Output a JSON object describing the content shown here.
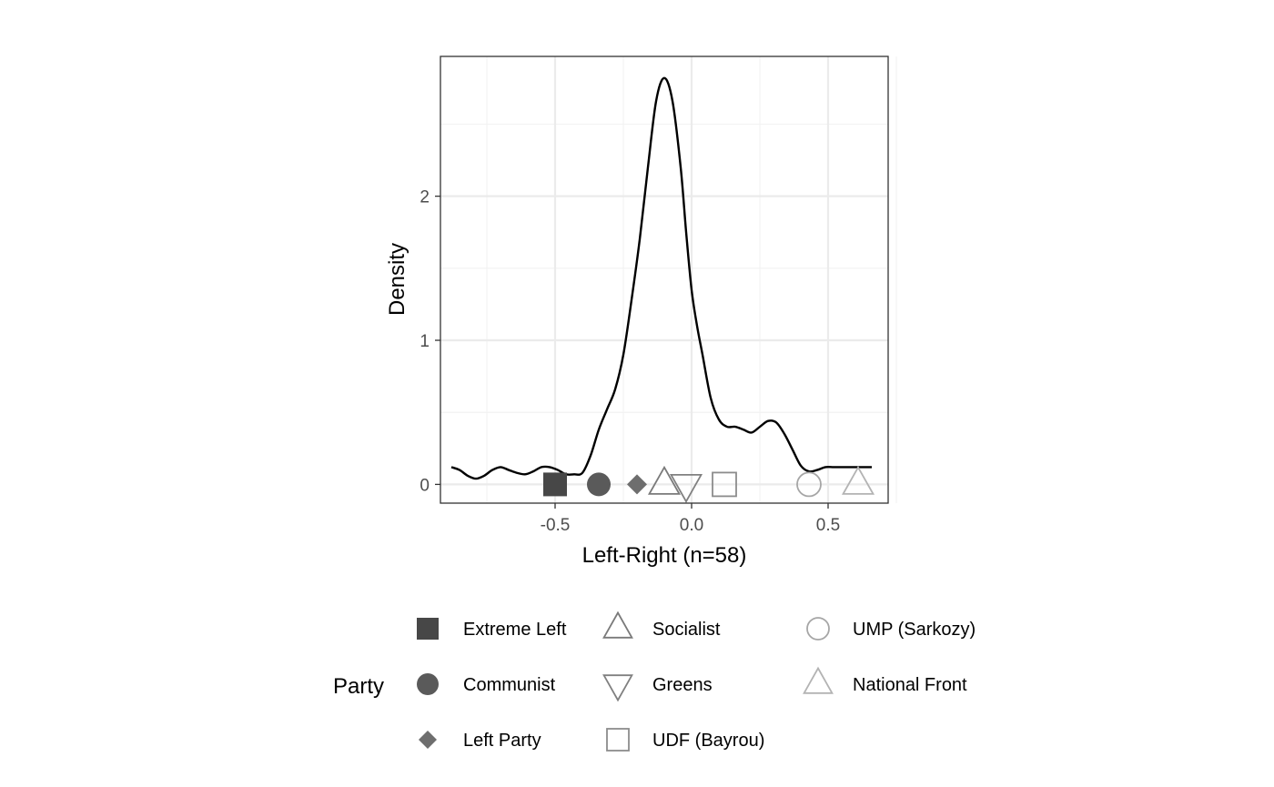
{
  "chart_data": {
    "type": "line",
    "xlabel": "Left-Right (n=58)",
    "ylabel": "Density",
    "xlim": [
      -0.92,
      0.72
    ],
    "ylim": [
      -0.13,
      2.97
    ],
    "x_ticks": [
      -0.5,
      0.0,
      0.5
    ],
    "x_tick_labels": [
      "-0.5",
      "0.0",
      "0.5"
    ],
    "y_ticks": [
      0,
      1,
      2
    ],
    "y_tick_labels": [
      "0",
      "1",
      "2"
    ],
    "grid": true,
    "legend_position": "bottom",
    "legend_title": "Party",
    "series": [
      {
        "x": [
          -0.88,
          -0.85,
          -0.82,
          -0.79,
          -0.76,
          -0.73,
          -0.7,
          -0.67,
          -0.64,
          -0.61,
          -0.58,
          -0.55,
          -0.52,
          -0.49,
          -0.46,
          -0.43,
          -0.4,
          -0.37,
          -0.34,
          -0.31,
          -0.28,
          -0.25,
          -0.22,
          -0.19,
          -0.16,
          -0.13,
          -0.1,
          -0.07,
          -0.04,
          -0.02,
          0.0,
          0.02,
          0.04,
          0.07,
          0.1,
          0.13,
          0.16,
          0.19,
          0.22,
          0.25,
          0.28,
          0.31,
          0.34,
          0.37,
          0.4,
          0.43,
          0.46,
          0.49,
          0.52,
          0.55,
          0.58,
          0.61,
          0.64,
          0.66
        ],
        "y": [
          0.12,
          0.1,
          0.06,
          0.04,
          0.06,
          0.1,
          0.12,
          0.1,
          0.08,
          0.07,
          0.09,
          0.12,
          0.12,
          0.1,
          0.07,
          0.07,
          0.08,
          0.2,
          0.38,
          0.52,
          0.66,
          0.9,
          1.28,
          1.7,
          2.2,
          2.66,
          2.82,
          2.66,
          2.2,
          1.75,
          1.35,
          1.1,
          0.9,
          0.6,
          0.45,
          0.4,
          0.4,
          0.38,
          0.36,
          0.4,
          0.44,
          0.43,
          0.35,
          0.24,
          0.13,
          0.09,
          0.1,
          0.12,
          0.12,
          0.12,
          0.12,
          0.12,
          0.12,
          0.12
        ]
      }
    ],
    "parties": [
      {
        "name": "Extreme Left",
        "x": -0.5,
        "shape": "square-filled",
        "color": "#474747"
      },
      {
        "name": "Communist",
        "x": -0.34,
        "shape": "circle-filled",
        "color": "#5a5a5a"
      },
      {
        "name": "Left Party",
        "x": -0.2,
        "shape": "diamond-filled",
        "color": "#6e6e6e"
      },
      {
        "name": "Socialist",
        "x": -0.1,
        "shape": "triangle-up-open",
        "color": "#7a7a7a"
      },
      {
        "name": "Greens",
        "x": -0.02,
        "shape": "triangle-down-open",
        "color": "#808080"
      },
      {
        "name": "UDF (Bayrou)",
        "x": 0.12,
        "shape": "square-open",
        "color": "#8c8c8c"
      },
      {
        "name": "UMP (Sarkozy)",
        "x": 0.43,
        "shape": "circle-open",
        "color": "#a6a6a6"
      },
      {
        "name": "National Front",
        "x": 0.61,
        "shape": "triangle-up-open",
        "color": "#b3b3b3"
      }
    ]
  }
}
